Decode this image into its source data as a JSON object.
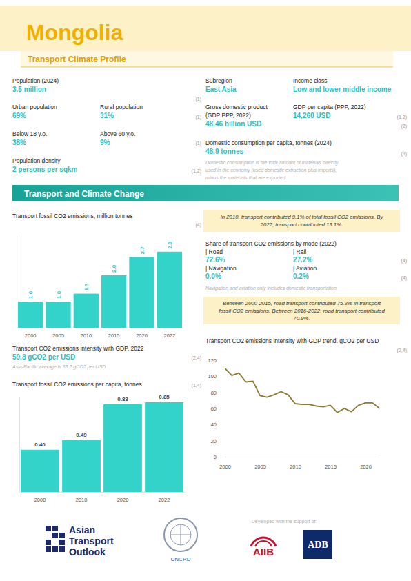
{
  "header": {
    "title": "Mongolia",
    "subtitle": "Transport Climate Profile"
  },
  "stats": [
    {
      "label": [
        "Population (2024)"
      ],
      "value": "3.5 million"
    },
    {
      "label": [
        "Urban population"
      ],
      "value": "69%"
    },
    {
      "label": [
        "Rural population"
      ],
      "value": "31%"
    },
    {
      "label": [
        "Below 18 y.o."
      ],
      "value": "38%"
    },
    {
      "label": [
        "Above 60 y.o."
      ],
      "value": "9%"
    },
    {
      "label": [
        "Population density"
      ],
      "value": "2 persons per sqkm"
    },
    {
      "label": [
        "Subregion"
      ],
      "value": "East Asia"
    },
    {
      "label": [
        "Income class"
      ],
      "value": "Low and lower middle income"
    },
    {
      "label": [
        "Gross domestic product",
        "(GDP PPP, 2022)"
      ],
      "value": "48.46 billion USD"
    },
    {
      "label": [
        "GDP per capita (PPP, 2022)"
      ],
      "value": "14,260 USD"
    },
    {
      "label": [
        "Domestic consumption per capita, tonnes (2024)"
      ],
      "value": "48.9 tonnes"
    }
  ],
  "stats_sources": [
    "(1)",
    "(1)",
    "(1)",
    "(1,2)",
    "(1,2)",
    "(2)",
    "(3)"
  ],
  "consumption_note": [
    "Domestic consumption is the total amount of materials directly",
    "used in the economy (used domestic extraction plus imports),",
    "minus the materials that are exported."
  ],
  "section_title": "Transport and Climate Change",
  "highlights": [
    [
      "In 2010, transport contributed 9.1% of total fossil CO2 emissions. By",
      "2022, transport contributed 13.1%."
    ],
    [
      "Between 2000-2015, road transport contributed 75.3% in transport",
      "fossil CO2 emissions. Between 2016-2022, road transport contributed",
      "70.9%."
    ]
  ],
  "mode_share": {
    "title": "Share of transport CO2 emissions by mode (2022)",
    "items": [
      {
        "label": "| Road",
        "value": "72.6%"
      },
      {
        "label": "| Rail",
        "value": "27.2%"
      },
      {
        "label": "| Navigation",
        "value": "0.0%"
      },
      {
        "label": "| Aviation",
        "value": "0.2%"
      }
    ],
    "sources": [
      "(4)",
      "(4)"
    ],
    "note": "Navigation and aviation only includes domestic transportation"
  },
  "intensity": {
    "label": "Transport CO2 emissions intensity with GDP, 2022",
    "value": "59.8 gCO2 per USD",
    "source": "(2,4)",
    "note": "Asia-Pacific average is 33.2 gCO2 per USD"
  },
  "chart_data": [
    {
      "type": "bar",
      "title": "Transport fossil CO2 emissions, million tonnes",
      "source": "(4)",
      "categories": [
        "2000",
        "2005",
        "2010",
        "2015",
        "2020",
        "2022"
      ],
      "values": [
        1.0,
        1.0,
        1.3,
        2.0,
        2.7,
        2.9
      ],
      "value_labels": [
        "1.0",
        "1.0",
        "1.3",
        "2.0",
        "2.7",
        "2.9"
      ],
      "color": "#33d3c9",
      "ylim": [
        0,
        3.5
      ],
      "yticks": [],
      "tick_labels": "x",
      "data_labels": true
    },
    {
      "type": "line",
      "title": "Transport CO2 emissions intensity with GDP trend, gCO2 per USD",
      "source": "(2,4)",
      "x": [
        2000,
        2001,
        2002,
        2003,
        2004,
        2005,
        2006,
        2007,
        2008,
        2009,
        2010,
        2011,
        2012,
        2013,
        2014,
        2015,
        2016,
        2017,
        2018,
        2019,
        2020,
        2021,
        2022
      ],
      "values": [
        110,
        101,
        104,
        93,
        94,
        76,
        74,
        77,
        81,
        77,
        66,
        65,
        65,
        63,
        62,
        64,
        55,
        60,
        56,
        64,
        67,
        67,
        60
      ],
      "color": "#8c7b2f",
      "xlim": [
        2000,
        2022
      ],
      "xticks": [
        2000,
        2005,
        2010,
        2015,
        2020
      ],
      "ylim": [
        0,
        120
      ],
      "yticks": [
        0,
        20,
        40,
        60,
        80,
        100,
        120
      ]
    },
    {
      "type": "bar",
      "title": "Transport fossil CO2 emissions per capita, tonnes",
      "source": "(1,4)",
      "categories": [
        "2000",
        "2010",
        "2020",
        "2022"
      ],
      "values": [
        0.4,
        0.49,
        0.83,
        0.85
      ],
      "value_labels": [
        "0.40",
        "0.49",
        "0.83",
        "0.85"
      ],
      "color": "#33d3c9",
      "ylim": [
        0,
        0.9
      ],
      "yticks": [],
      "tick_labels": "x",
      "data_labels": true
    }
  ],
  "footer": {
    "ato": [
      "Asian",
      "Transport",
      "Outlook"
    ],
    "uncrd": "UNCRD",
    "support": "Developed with the support of:",
    "aiib": "AIIB",
    "adb": "ADB"
  }
}
